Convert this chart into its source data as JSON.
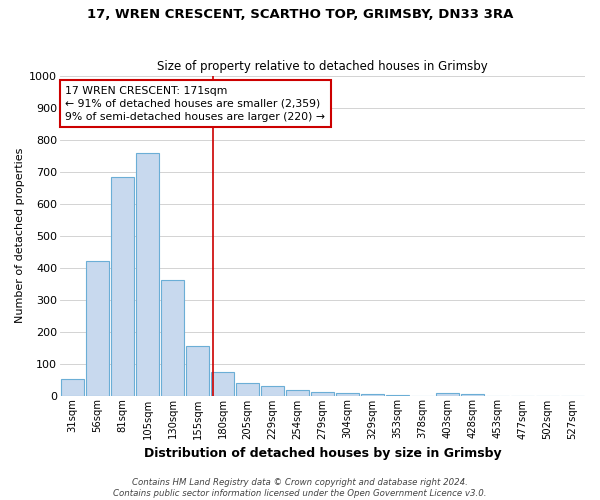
{
  "title1": "17, WREN CRESCENT, SCARTHO TOP, GRIMSBY, DN33 3RA",
  "title2": "Size of property relative to detached houses in Grimsby",
  "xlabel": "Distribution of detached houses by size in Grimsby",
  "ylabel": "Number of detached properties",
  "bins": [
    "31sqm",
    "56sqm",
    "81sqm",
    "105sqm",
    "130sqm",
    "155sqm",
    "180sqm",
    "205sqm",
    "229sqm",
    "254sqm",
    "279sqm",
    "304sqm",
    "329sqm",
    "353sqm",
    "378sqm",
    "403sqm",
    "428sqm",
    "453sqm",
    "477sqm",
    "502sqm",
    "527sqm"
  ],
  "values": [
    52,
    422,
    683,
    758,
    363,
    155,
    75,
    40,
    30,
    18,
    12,
    9,
    5,
    3,
    0,
    8,
    5,
    0,
    0,
    0,
    0
  ],
  "bar_color": "#c8d9ee",
  "bar_edge_color": "#6baed6",
  "grid_color": "#cccccc",
  "vline_color": "#cc0000",
  "annotation_text": "17 WREN CRESCENT: 171sqm\n← 91% of detached houses are smaller (2,359)\n9% of semi-detached houses are larger (220) →",
  "annotation_box_color": "#ffffff",
  "annotation_box_edge": "#cc0000",
  "footnote": "Contains HM Land Registry data © Crown copyright and database right 2024.\nContains public sector information licensed under the Open Government Licence v3.0.",
  "ylim": [
    0,
    1000
  ],
  "yticks": [
    0,
    100,
    200,
    300,
    400,
    500,
    600,
    700,
    800,
    900,
    1000
  ],
  "fig_bg": "#ffffff",
  "plot_bg": "#ffffff"
}
